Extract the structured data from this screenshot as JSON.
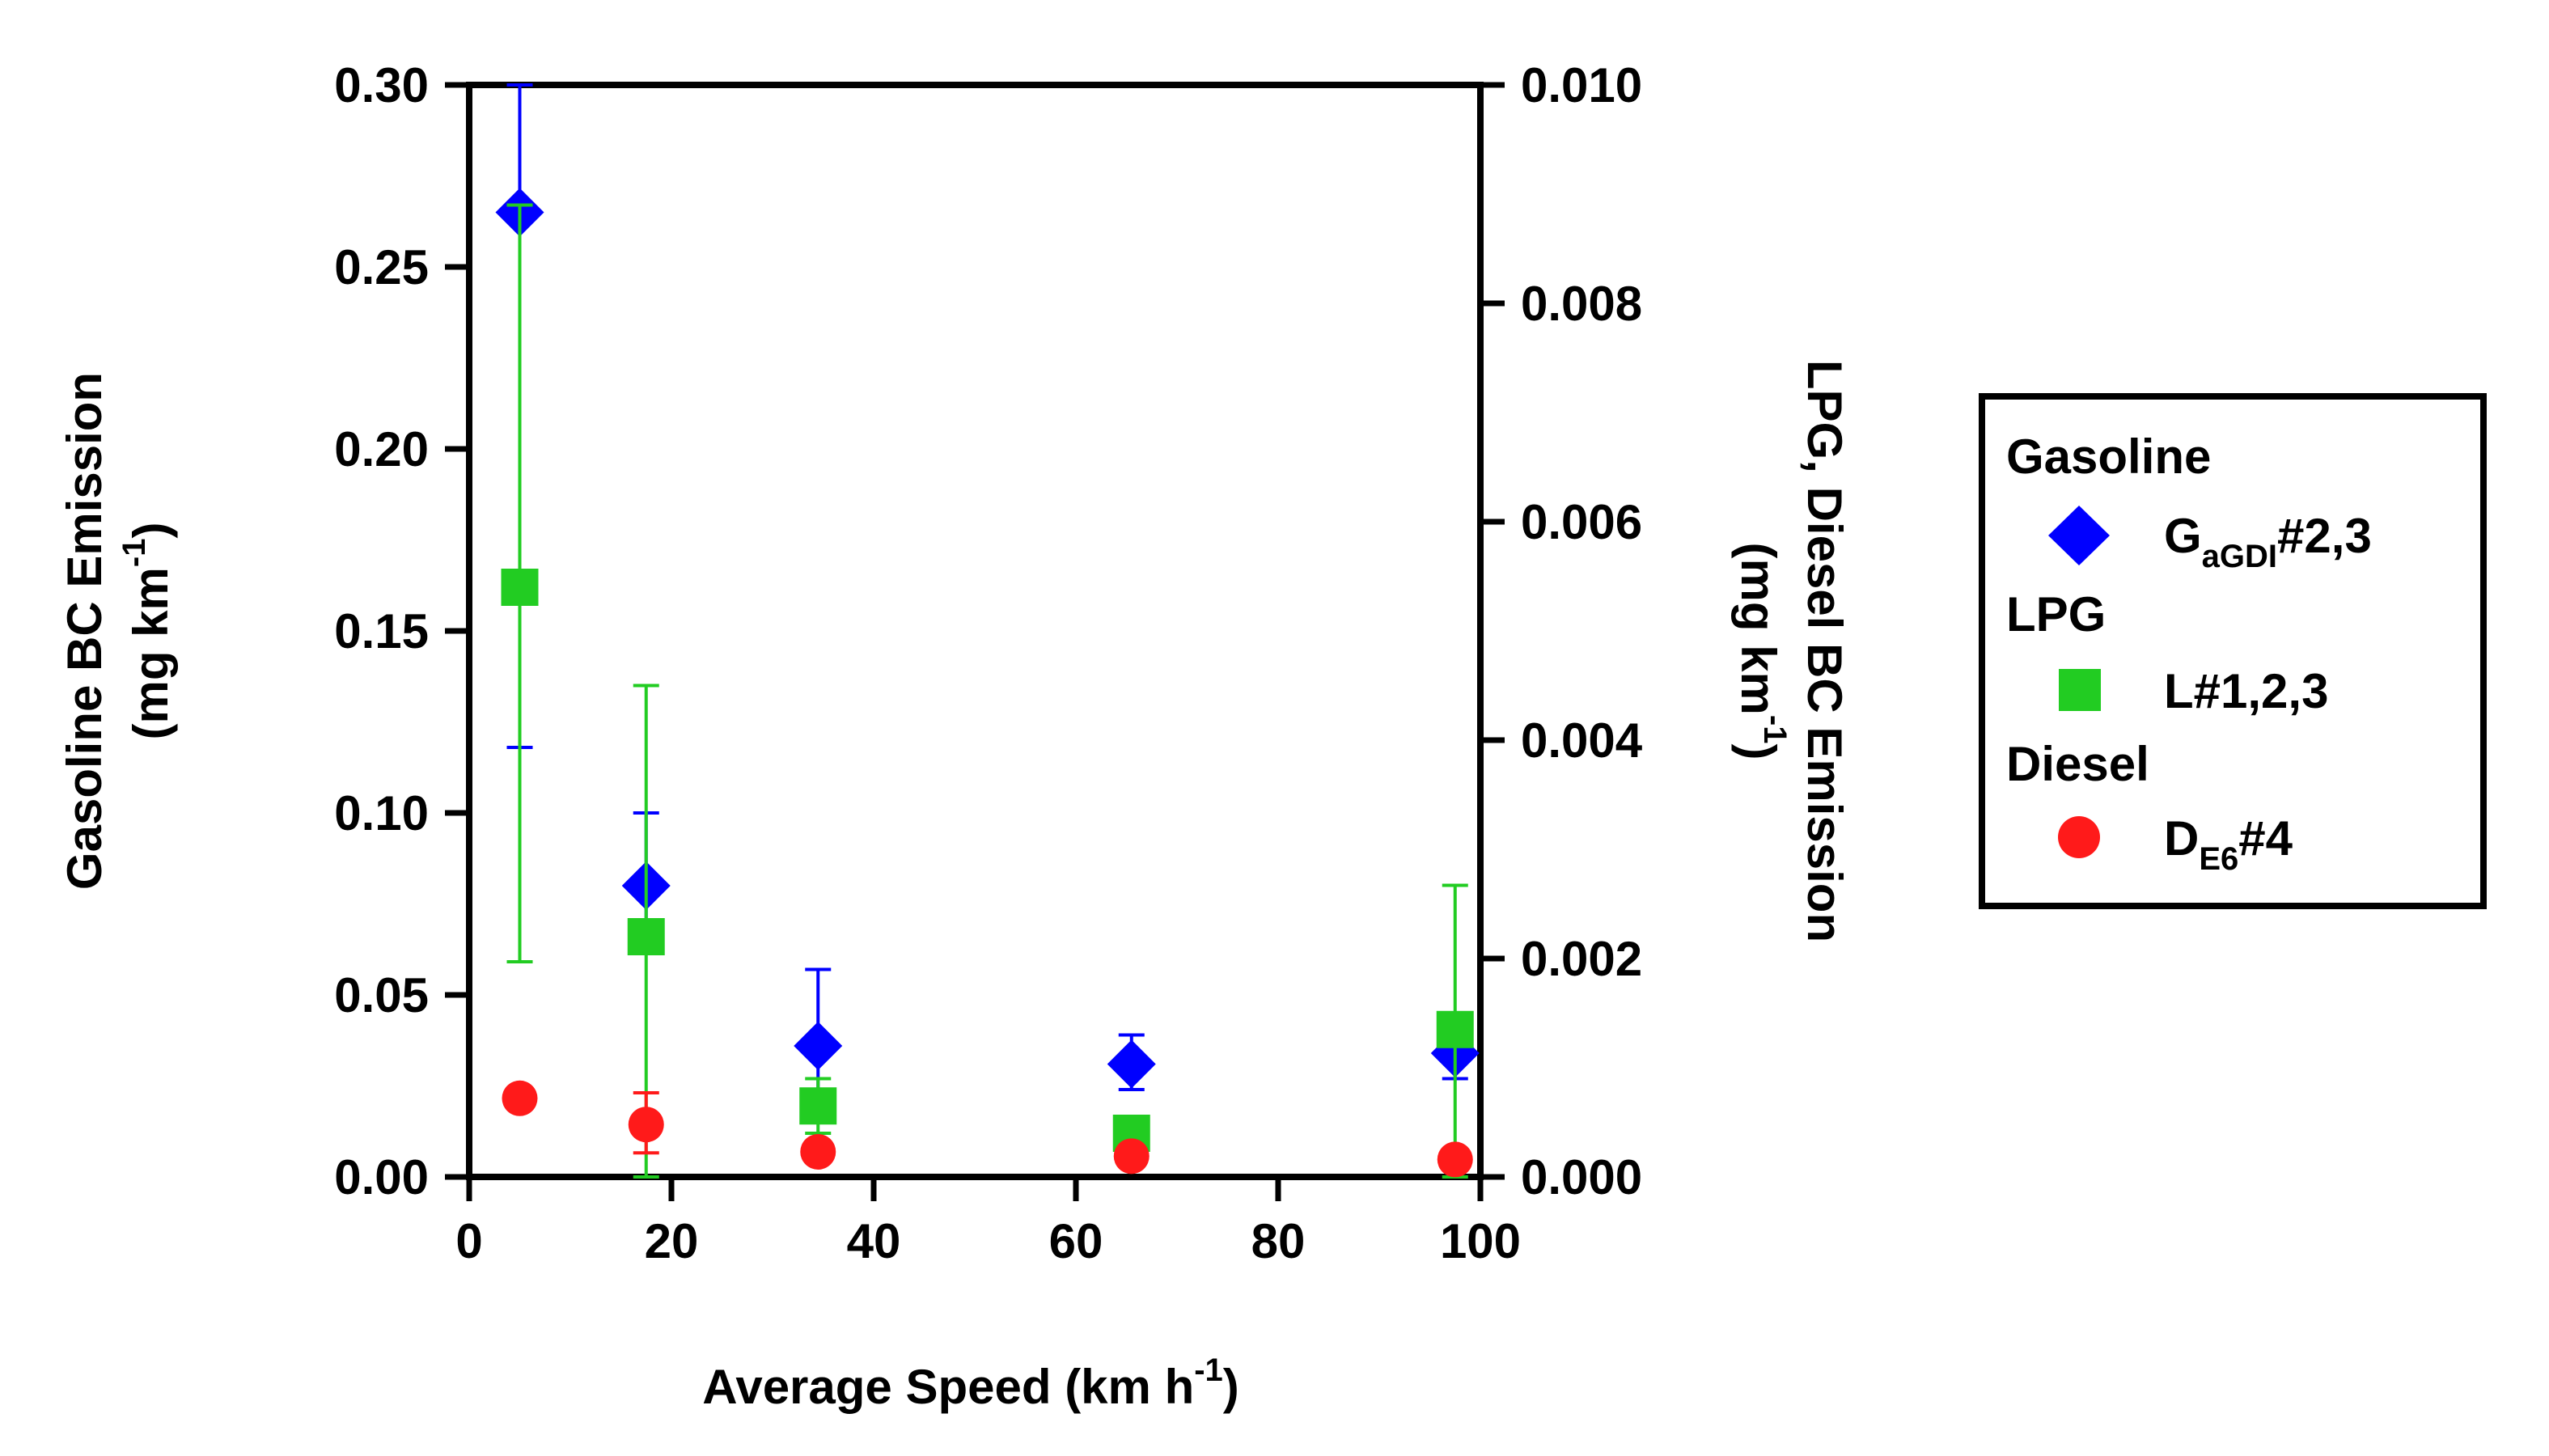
{
  "chart_data": {
    "type": "scatter",
    "xlabel": "Average Speed (km h",
    "xlabel_sup": "-1",
    "xlabel_end": ")",
    "ylabel_left_line1": "Gasoline BC Emission",
    "ylabel_left_line2": "(mg km",
    "ylabel_left_sup": "-1",
    "ylabel_left_end": ")",
    "ylabel_right_line1": "LPG, Diesel BC Emission",
    "ylabel_right_line2": "(mg km",
    "ylabel_right_sup": "-1",
    "ylabel_right_end": ")",
    "xlim": [
      0,
      100
    ],
    "x_ticks": [
      "0",
      "20",
      "40",
      "60",
      "80",
      "100"
    ],
    "ylim_left": [
      0,
      0.3
    ],
    "y_left_ticks": [
      "0.00",
      "0.05",
      "0.10",
      "0.15",
      "0.20",
      "0.25",
      "0.30"
    ],
    "ylim_right": [
      0,
      0.01
    ],
    "y_right_ticks": [
      "0.000",
      "0.002",
      "0.004",
      "0.006",
      "0.008",
      "0.010"
    ],
    "grid": false,
    "legend_position": "right",
    "series": [
      {
        "name": "Gasoline",
        "label_main": "G",
        "label_sub": "aGDI",
        "label_end": "#2,3",
        "axis": "left",
        "marker": "diamond",
        "color": "#0000ff",
        "x": [
          5,
          17.5,
          34.5,
          65.5,
          97.5
        ],
        "y": [
          0.265,
          0.08,
          0.036,
          0.031,
          0.034
        ],
        "err_low": [
          0.118,
          0.062,
          0.016,
          0.024,
          0.027
        ],
        "err_high": [
          0.3,
          0.1,
          0.057,
          0.039,
          0.041
        ]
      },
      {
        "name": "LPG",
        "label_main": "L#1,2,3",
        "label_sub": "",
        "label_end": "",
        "axis": "right",
        "marker": "square",
        "color": "#22cc22",
        "x": [
          5,
          17.5,
          34.5,
          65.5,
          97.5
        ],
        "y": [
          0.0054,
          0.0022,
          0.00065,
          0.0004,
          0.00135
        ],
        "err_low": [
          0.00197,
          0.0,
          0.0004,
          0.0004,
          0.0
        ],
        "err_high": [
          0.0089,
          0.0045,
          0.0009,
          0.0004,
          0.00267
        ]
      },
      {
        "name": "Diesel",
        "label_main": "D",
        "label_sub": "E6",
        "label_end": "#4",
        "axis": "right",
        "marker": "circle",
        "color": "#ff1a1a",
        "x": [
          5,
          17.5,
          34.5,
          65.5,
          97.5
        ],
        "y": [
          0.00072,
          0.00048,
          0.00023,
          0.00019,
          0.00016
        ],
        "err_low": [
          0.00072,
          0.00022,
          0.00023,
          0.00019,
          0.00016
        ],
        "err_high": [
          0.00072,
          0.00077,
          0.00023,
          0.00019,
          0.00016
        ]
      }
    ]
  }
}
